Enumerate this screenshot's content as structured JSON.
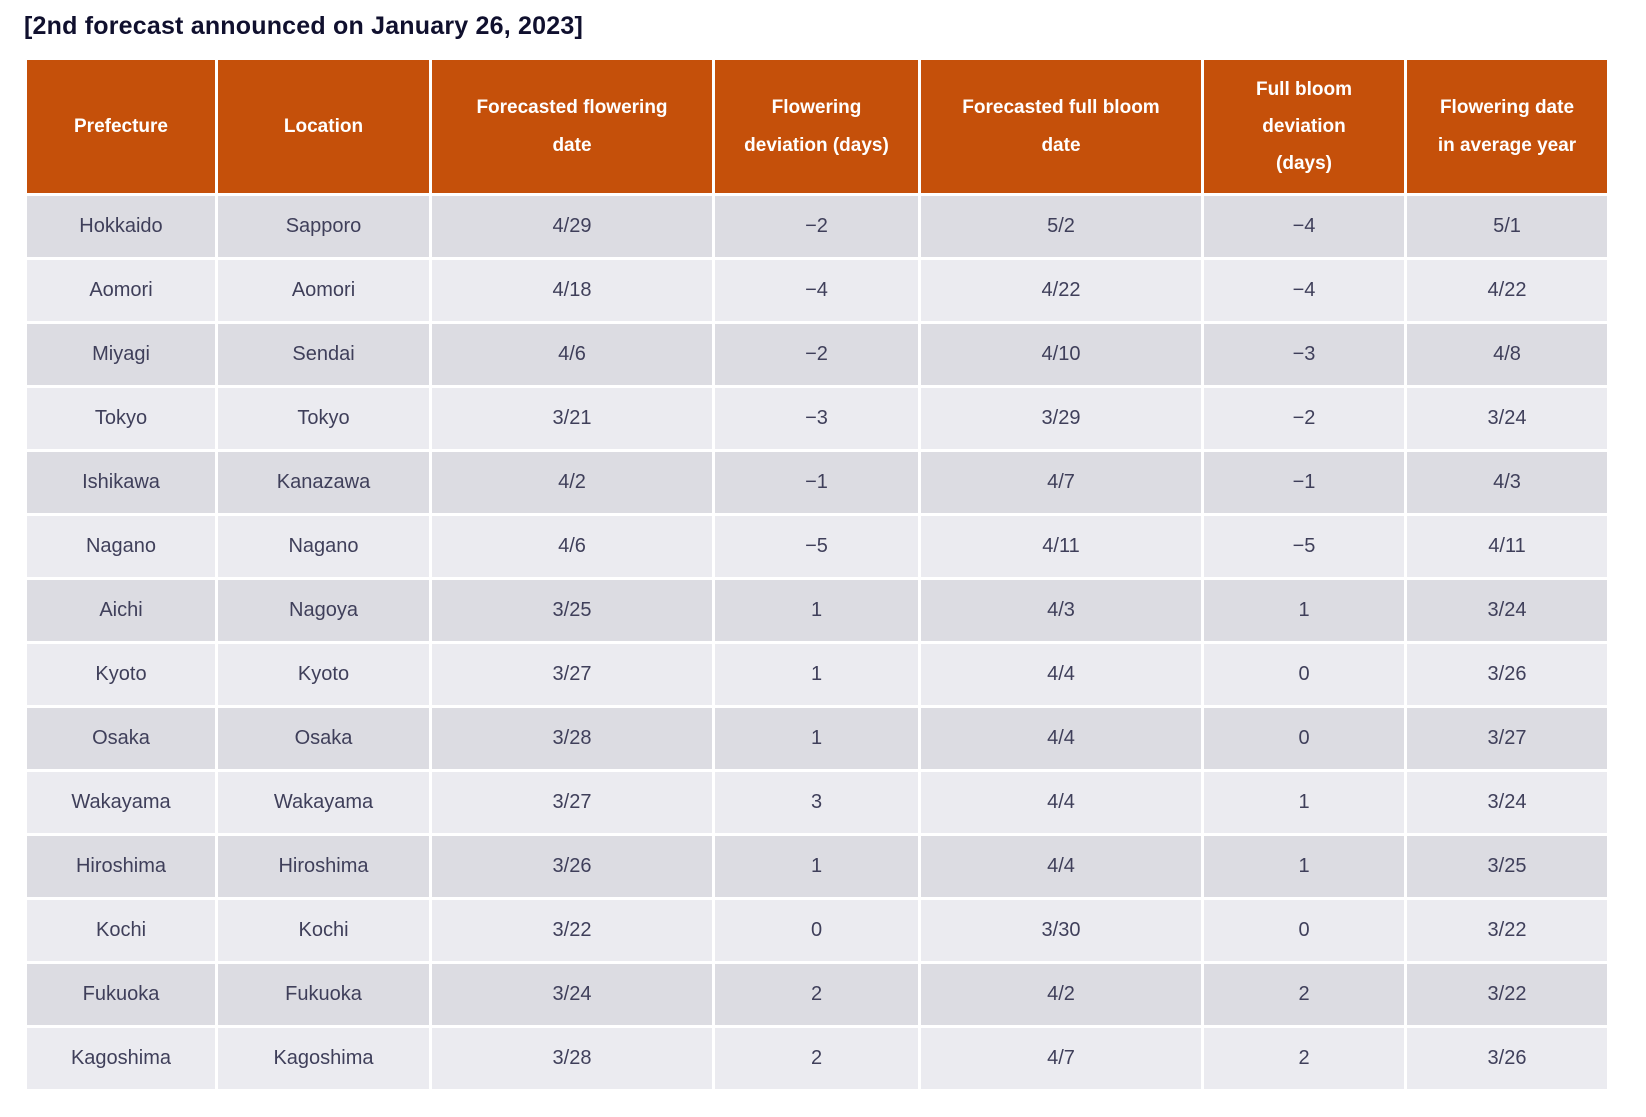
{
  "colors": {
    "header_bg": "#C5500A",
    "header_text": "#FFFFFF",
    "row_dark_bg": "#DCDCE2",
    "row_light_bg": "#EBEBF0",
    "date_column_bg": "#FDFDEC",
    "cell_text": "#3F3F5A",
    "caption_text": "#10102E",
    "page_bg": "#FFFFFF"
  },
  "chart_data": {
    "type": "table",
    "title": "[2nd forecast announced on January 26, 2023]",
    "columns": [
      "Prefecture",
      "Location",
      "Forecasted flowering date",
      "Flowering deviation (days)",
      "Forecasted full bloom date",
      "Full bloom deviation (days)",
      "Flowering date in average year"
    ],
    "rows": [
      [
        "Hokkaido",
        "Sapporo",
        "4/29",
        "−2",
        "5/2",
        "−4",
        "5/1"
      ],
      [
        "Aomori",
        "Aomori",
        "4/18",
        "−4",
        "4/22",
        "−4",
        "4/22"
      ],
      [
        "Miyagi",
        "Sendai",
        "4/6",
        "−2",
        "4/10",
        "−3",
        "4/8"
      ],
      [
        "Tokyo",
        "Tokyo",
        "3/21",
        "−3",
        "3/29",
        "−2",
        "3/24"
      ],
      [
        "Ishikawa",
        "Kanazawa",
        "4/2",
        "−1",
        "4/7",
        "−1",
        "4/3"
      ],
      [
        "Nagano",
        "Nagano",
        "4/6",
        "−5",
        "4/11",
        "−5",
        "4/11"
      ],
      [
        "Aichi",
        "Nagoya",
        "3/25",
        "1",
        "4/3",
        "1",
        "3/24"
      ],
      [
        "Kyoto",
        "Kyoto",
        "3/27",
        "1",
        "4/4",
        "0",
        "3/26"
      ],
      [
        "Osaka",
        "Osaka",
        "3/28",
        "1",
        "4/4",
        "0",
        "3/27"
      ],
      [
        "Wakayama",
        "Wakayama",
        "3/27",
        "3",
        "4/4",
        "1",
        "3/24"
      ],
      [
        "Hiroshima",
        "Hiroshima",
        "3/26",
        "1",
        "4/4",
        "1",
        "3/25"
      ],
      [
        "Kochi",
        "Kochi",
        "3/22",
        "0",
        "3/30",
        "0",
        "3/22"
      ],
      [
        "Fukuoka",
        "Fukuoka",
        "3/24",
        "2",
        "4/2",
        "2",
        "3/22"
      ],
      [
        "Kagoshima",
        "Kagoshima",
        "3/28",
        "2",
        "4/7",
        "2",
        "3/26"
      ]
    ]
  }
}
